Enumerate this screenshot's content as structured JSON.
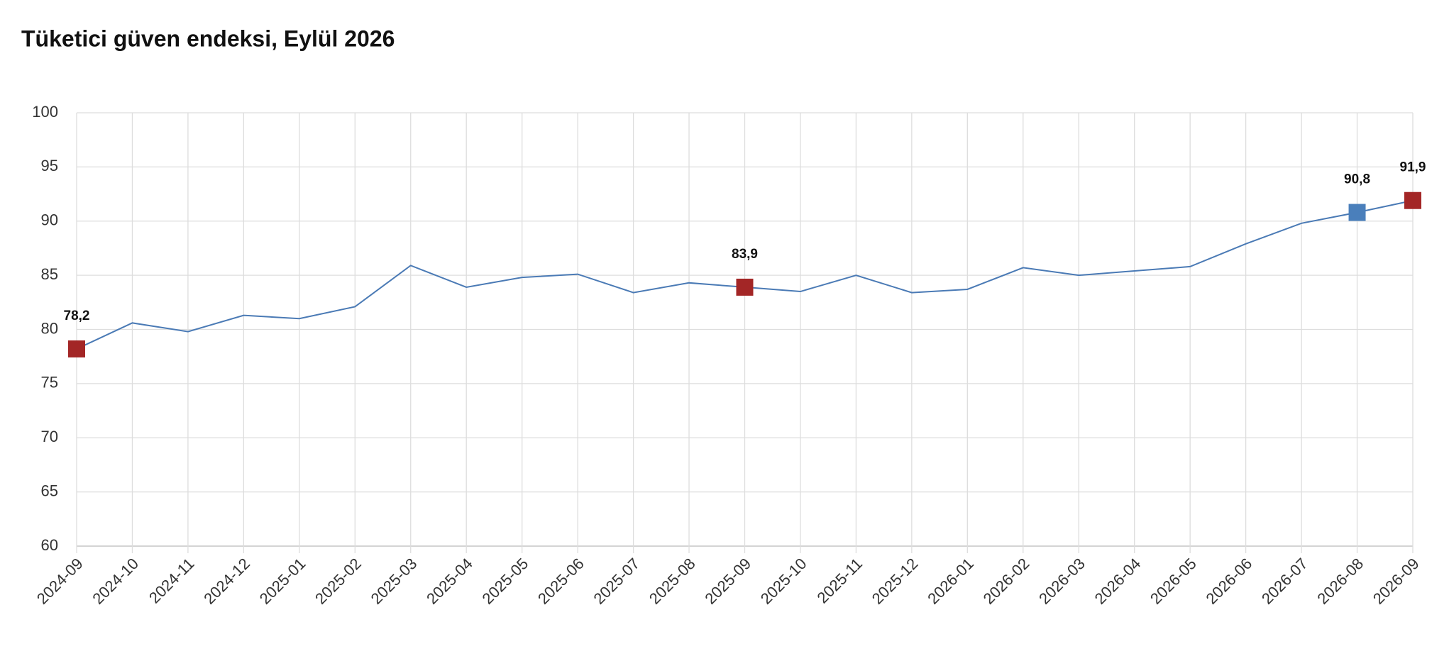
{
  "chart_data": {
    "type": "line",
    "title": "Tüketici güven endeksi, Eylül 2026",
    "categories": [
      "2024-09",
      "2024-10",
      "2024-11",
      "2024-12",
      "2025-01",
      "2025-02",
      "2025-03",
      "2025-04",
      "2025-05",
      "2025-06",
      "2025-07",
      "2025-08",
      "2025-09",
      "2025-10",
      "2025-11",
      "2025-12",
      "2026-01",
      "2026-02",
      "2026-03",
      "2026-04",
      "2026-05",
      "2026-06",
      "2026-07",
      "2026-08",
      "2026-09"
    ],
    "series": [
      {
        "color": "#4a7ab5",
        "values": [
          78.2,
          80.6,
          79.8,
          81.3,
          81.0,
          82.1,
          85.9,
          83.9,
          84.8,
          85.1,
          83.4,
          84.3,
          83.9,
          83.5,
          85.0,
          83.4,
          83.7,
          85.7,
          85.0,
          85.4,
          85.8,
          87.9,
          89.8,
          90.8,
          91.9
        ],
        "value_labels": [
          "78,2",
          null,
          null,
          null,
          null,
          null,
          null,
          null,
          null,
          null,
          null,
          null,
          "83,9",
          null,
          null,
          null,
          null,
          null,
          null,
          null,
          null,
          null,
          null,
          "90,8",
          "91,9"
        ],
        "marker_colors": [
          "#a32626",
          null,
          null,
          null,
          null,
          null,
          null,
          null,
          null,
          null,
          null,
          null,
          "#a32626",
          null,
          null,
          null,
          null,
          null,
          null,
          null,
          null,
          null,
          null,
          "#4a7fbb",
          "#a32626"
        ]
      }
    ],
    "ylim": [
      60,
      100
    ],
    "yticks": [
      60,
      65,
      70,
      75,
      80,
      85,
      90,
      95,
      100
    ],
    "grid": true
  }
}
